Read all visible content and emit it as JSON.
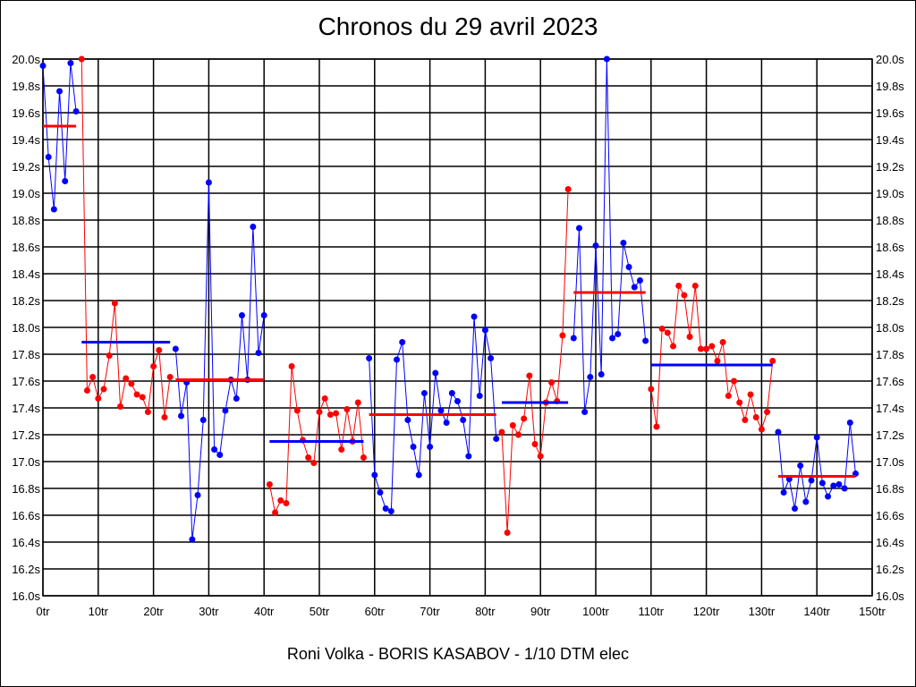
{
  "chart_data": {
    "type": "line",
    "title": "Chronos du 29 avril 2023",
    "footer": "Roni Volka - BORIS KASABOV - 1/10 DTM elec",
    "xlabel": "",
    "ylabel": "",
    "xlim": [
      0,
      150
    ],
    "ylim": [
      16.0,
      20.0
    ],
    "x_ticks": [
      "0tr",
      "10tr",
      "20tr",
      "30tr",
      "40tr",
      "50tr",
      "60tr",
      "70tr",
      "80tr",
      "90tr",
      "100tr",
      "110tr",
      "120tr",
      "130tr",
      "140tr",
      "150tr"
    ],
    "y_ticks": [
      "16.0s",
      "16.2s",
      "16.4s",
      "16.6s",
      "16.8s",
      "17.0s",
      "17.2s",
      "17.4s",
      "17.6s",
      "17.8s",
      "18.0s",
      "18.2s",
      "18.4s",
      "18.6s",
      "18.8s",
      "19.0s",
      "19.2s",
      "19.4s",
      "19.6s",
      "19.8s",
      "20.0s"
    ],
    "grid": true,
    "colors": {
      "blue": "#0000ff",
      "red": "#ff0000"
    },
    "stints": [
      {
        "color": "blue",
        "start_lap": 0,
        "mean": 19.5,
        "mean_color": "red",
        "mean_range": [
          0,
          6
        ],
        "values": [
          19.95,
          19.27,
          18.88,
          19.76,
          19.09,
          19.97,
          19.61
        ]
      },
      {
        "color": "red",
        "start_lap": 7,
        "mean": 17.89,
        "mean_color": "blue",
        "mean_range": [
          7,
          23
        ],
        "values": [
          20.0,
          17.53,
          17.63,
          17.47,
          17.54,
          17.79,
          18.18,
          17.41,
          17.62,
          17.58,
          17.5,
          17.48,
          17.37,
          17.71,
          17.83,
          17.33,
          17.63
        ]
      },
      {
        "color": "blue",
        "start_lap": 24,
        "mean": 17.61,
        "mean_color": "red",
        "mean_range": [
          24,
          40
        ],
        "values": [
          17.84,
          17.34,
          17.59,
          16.42,
          16.75,
          17.31,
          19.08,
          17.09,
          17.05,
          17.38,
          17.61,
          17.47,
          18.09,
          17.61,
          18.75,
          17.81,
          18.09
        ]
      },
      {
        "color": "red",
        "start_lap": 41,
        "mean": 17.15,
        "mean_color": "blue",
        "mean_range": [
          41,
          58
        ],
        "values": [
          16.83,
          16.62,
          16.71,
          16.69,
          17.71,
          17.38,
          17.16,
          17.03,
          16.99,
          17.37,
          17.47,
          17.35,
          17.36,
          17.09,
          17.39,
          17.15,
          17.44,
          17.03
        ]
      },
      {
        "color": "blue",
        "start_lap": 59,
        "mean": 17.35,
        "mean_color": "red",
        "mean_range": [
          59,
          82
        ],
        "values": [
          17.77,
          16.9,
          16.77,
          16.65,
          16.63,
          17.76,
          17.89,
          17.31,
          17.11,
          16.9,
          17.51,
          17.11,
          17.66,
          17.38,
          17.29,
          17.51,
          17.45,
          17.31,
          17.04,
          18.08,
          17.49,
          17.98,
          17.77,
          17.17
        ]
      },
      {
        "color": "red",
        "start_lap": 83,
        "mean": 17.44,
        "mean_color": "blue",
        "mean_range": [
          83,
          95
        ],
        "values": [
          17.22,
          16.47,
          17.27,
          17.2,
          17.32,
          17.64,
          17.13,
          17.04,
          17.44,
          17.59,
          17.45,
          17.94,
          19.03
        ]
      },
      {
        "color": "blue",
        "start_lap": 96,
        "mean": 18.26,
        "mean_color": "red",
        "mean_range": [
          96,
          109
        ],
        "values": [
          17.92,
          18.74,
          17.37,
          17.63,
          18.61,
          17.65,
          20.0,
          17.92,
          17.95,
          18.63,
          18.45,
          18.3,
          18.35,
          17.9
        ]
      },
      {
        "color": "red",
        "start_lap": 110,
        "mean": 17.72,
        "mean_color": "blue",
        "mean_range": [
          110,
          132
        ],
        "values": [
          17.54,
          17.26,
          17.99,
          17.96,
          17.86,
          18.31,
          18.24,
          17.93,
          18.31,
          17.84,
          17.84,
          17.86,
          17.75,
          17.89,
          17.49,
          17.6,
          17.44,
          17.31,
          17.5,
          17.33,
          17.24,
          17.37,
          17.75
        ]
      },
      {
        "color": "blue",
        "start_lap": 133,
        "mean": 16.89,
        "mean_color": "red",
        "mean_range": [
          133,
          147
        ],
        "values": [
          17.22,
          16.77,
          16.87,
          16.65,
          16.97,
          16.7,
          16.86,
          17.18,
          16.84,
          16.74,
          16.82,
          16.83,
          16.8,
          17.29,
          16.91
        ]
      }
    ]
  }
}
